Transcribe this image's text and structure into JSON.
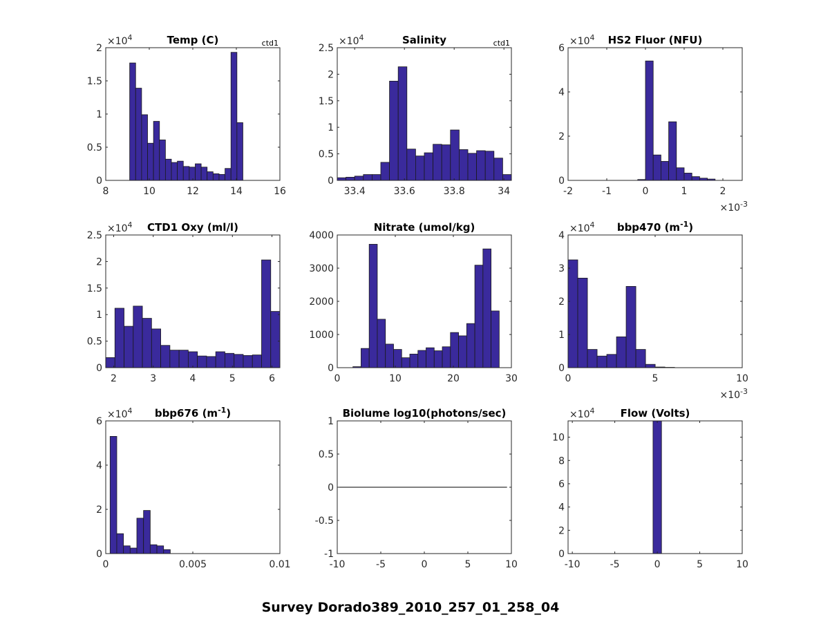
{
  "figure": {
    "suptitle": "Survey Dorado389_2010_257_01_258_04",
    "bar_color": "#3a2a9c",
    "edge_color": "#1a1a1a",
    "axis_color": "#262626"
  },
  "chart_data": [
    {
      "type": "bar",
      "title": "Temp (C)",
      "note": "ctd1",
      "xlim": [
        8,
        16
      ],
      "ylim": [
        0,
        20000
      ],
      "xticks": [
        "8",
        "10",
        "12",
        "14",
        "16"
      ],
      "xtick_values": [
        8,
        10,
        12,
        14,
        16
      ],
      "yticks": [
        "0",
        "0.5",
        "1",
        "1.5",
        "2"
      ],
      "ytick_values": [
        0,
        5000,
        10000,
        15000,
        20000
      ],
      "ymult": "×10",
      "ymult_exp": "4",
      "bin_start": 9.1,
      "bin_width": 0.2737,
      "values": [
        17700,
        13900,
        9900,
        5600,
        8900,
        6100,
        3200,
        2700,
        2900,
        2100,
        2000,
        2500,
        2000,
        1300,
        1000,
        900,
        1800,
        19300,
        8700
      ]
    },
    {
      "type": "bar",
      "title": "Salinity",
      "note": "ctd1",
      "xlim": [
        33.33,
        34.03
      ],
      "ylim": [
        0,
        25000
      ],
      "xticks": [
        "33.4",
        "33.6",
        "33.8",
        "34"
      ],
      "xtick_values": [
        33.4,
        33.6,
        33.8,
        34.0
      ],
      "yticks": [
        "0",
        "0.5",
        "1",
        "1.5",
        "2",
        "2.5"
      ],
      "ytick_values": [
        0,
        5000,
        10000,
        15000,
        20000,
        25000
      ],
      "ymult": "×10",
      "ymult_exp": "4",
      "bin_start": 33.33,
      "bin_width": 0.035,
      "values": [
        500,
        600,
        800,
        1100,
        1100,
        3400,
        18700,
        21400,
        5900,
        4600,
        5200,
        6800,
        6700,
        9500,
        5800,
        5100,
        5600,
        5500,
        4200,
        1100
      ]
    },
    {
      "type": "bar",
      "title": "HS2 Fluor (NFU)",
      "note": "",
      "xlim": [
        -0.002,
        0.0025
      ],
      "ylim": [
        0,
        60000
      ],
      "xticks": [
        "-2",
        "-1",
        "0",
        "1",
        "2"
      ],
      "xtick_values": [
        -0.002,
        -0.001,
        0,
        0.001,
        0.002
      ],
      "yticks": [
        "0",
        "2",
        "4",
        "6"
      ],
      "ytick_values": [
        0,
        20000,
        40000,
        60000
      ],
      "ymult": "×10",
      "ymult_exp": "4",
      "xmult": "×10",
      "xmult_exp": "-3",
      "bin_start": -0.0002,
      "bin_width": 0.0002,
      "values": [
        400,
        54000,
        11500,
        8600,
        26500,
        5700,
        3300,
        1700,
        1000,
        600
      ]
    },
    {
      "type": "bar",
      "title": "CTD1 Oxy (ml/l)",
      "note": "",
      "xlim": [
        1.8,
        6.2
      ],
      "ylim": [
        0,
        25000
      ],
      "xticks": [
        "2",
        "3",
        "4",
        "5",
        "6"
      ],
      "xtick_values": [
        2,
        3,
        4,
        5,
        6
      ],
      "yticks": [
        "0",
        "0.5",
        "1",
        "1.5",
        "2",
        "2.5"
      ],
      "ytick_values": [
        0,
        5000,
        10000,
        15000,
        20000,
        25000
      ],
      "ymult": "×10",
      "ymult_exp": "4",
      "bin_start": 1.8,
      "bin_width": 0.2316,
      "values": [
        1900,
        11200,
        7800,
        11600,
        9300,
        7300,
        4200,
        3300,
        3300,
        3000,
        2200,
        2100,
        3000,
        2700,
        2500,
        2300,
        2400,
        20300,
        10600
      ]
    },
    {
      "type": "bar",
      "title": "Nitrate (umol/kg)",
      "note": "",
      "xlim": [
        0,
        30
      ],
      "ylim": [
        0,
        4000
      ],
      "xticks": [
        "0",
        "10",
        "20",
        "30"
      ],
      "xtick_values": [
        0,
        10,
        20,
        30
      ],
      "yticks": [
        "0",
        "1000",
        "2000",
        "3000",
        "4000"
      ],
      "ytick_values": [
        0,
        1000,
        2000,
        3000,
        4000
      ],
      "ymult": "",
      "ymult_exp": "",
      "bin_start": 2.7,
      "bin_width": 1.4,
      "values": [
        30,
        580,
        3720,
        1460,
        710,
        550,
        300,
        410,
        520,
        600,
        510,
        630,
        1060,
        960,
        1330,
        3090,
        3580,
        1710
      ]
    },
    {
      "type": "bar",
      "title": "bbp470 (m",
      "title_sup": "-1",
      "title_end": ")",
      "note": "",
      "xlim": [
        0,
        0.01
      ],
      "ylim": [
        0,
        40000
      ],
      "xticks": [
        "0",
        "5",
        "10"
      ],
      "xtick_values": [
        0,
        0.005,
        0.01
      ],
      "yticks": [
        "0",
        "1",
        "2",
        "3",
        "4"
      ],
      "ytick_values": [
        0,
        10000,
        20000,
        30000,
        40000
      ],
      "ymult": "×10",
      "ymult_exp": "4",
      "xmult": "×10",
      "xmult_exp": "-3",
      "bin_start": 0,
      "bin_width": 0.000556,
      "values": [
        32500,
        27000,
        5500,
        3500,
        4000,
        9300,
        24500,
        5500,
        1000,
        200,
        100
      ]
    },
    {
      "type": "bar",
      "title": "bbp676 (m",
      "title_sup": "-1",
      "title_end": ")",
      "note": "",
      "xlim": [
        0,
        0.01
      ],
      "ylim": [
        0,
        60000
      ],
      "xticks": [
        "0",
        "0.005",
        "0.01"
      ],
      "xtick_values": [
        0,
        0.005,
        0.01
      ],
      "yticks": [
        "0",
        "2",
        "4",
        "6"
      ],
      "ytick_values": [
        0,
        20000,
        40000,
        60000
      ],
      "ymult": "×10",
      "ymult_exp": "4",
      "bin_start": 0.00025,
      "bin_width": 0.000384,
      "values": [
        53000,
        9000,
        3500,
        2500,
        16000,
        19500,
        4000,
        3500,
        1800
      ]
    },
    {
      "type": "line",
      "title": "Biolume log10(photons/sec)",
      "note": "",
      "xlim": [
        -10,
        10
      ],
      "ylim": [
        -1,
        1
      ],
      "xticks": [
        "-10",
        "-5",
        "0",
        "5",
        "10"
      ],
      "xtick_values": [
        -10,
        -5,
        0,
        5,
        10
      ],
      "yticks": [
        "-1",
        "-0.5",
        "0",
        "0.5",
        "1"
      ],
      "ytick_values": [
        -1,
        -0.5,
        0,
        0.5,
        1
      ],
      "ymult": "",
      "ymult_exp": "",
      "line_x": [
        -10,
        9.5
      ],
      "line_y": [
        0,
        0
      ]
    },
    {
      "type": "bar",
      "title": "Flow (Volts)",
      "note": "",
      "xlim": [
        -10.5,
        10
      ],
      "ylim": [
        0,
        114000
      ],
      "xticks": [
        "-10",
        "-5",
        "0",
        "5",
        "10"
      ],
      "xtick_values": [
        -10,
        -5,
        0,
        5,
        10
      ],
      "yticks": [
        "0",
        "2",
        "4",
        "6",
        "8",
        "10"
      ],
      "ytick_values": [
        0,
        20000,
        40000,
        60000,
        80000,
        100000
      ],
      "ymult": "×10",
      "ymult_exp": "4",
      "bin_start": -0.5,
      "bin_width": 1.0,
      "values": [
        114000
      ]
    }
  ]
}
